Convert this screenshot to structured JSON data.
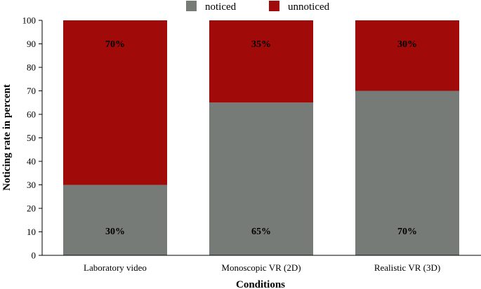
{
  "chart_data": {
    "type": "bar",
    "stacked": true,
    "categories": [
      "Laboratory video",
      "Monoscopic VR (2D)",
      "Realistic VR (3D)"
    ],
    "series": [
      {
        "name": "noticed",
        "values": [
          30,
          65,
          70
        ],
        "labels": [
          "30%",
          "65%",
          "70%"
        ],
        "color": "#767b78"
      },
      {
        "name": "unnoticed",
        "values": [
          70,
          35,
          30
        ],
        "labels": [
          "70%",
          "35%",
          "30%"
        ],
        "color": "#a00a09"
      }
    ],
    "xlabel": "Conditions",
    "ylabel": "Noticing rate in percent",
    "ylim": [
      0,
      100
    ],
    "yticks": [
      "0",
      "10",
      "20",
      "30",
      "40",
      "50",
      "60",
      "70",
      "80",
      "90",
      "100"
    ],
    "grid": false,
    "legend_position": "top-center"
  }
}
